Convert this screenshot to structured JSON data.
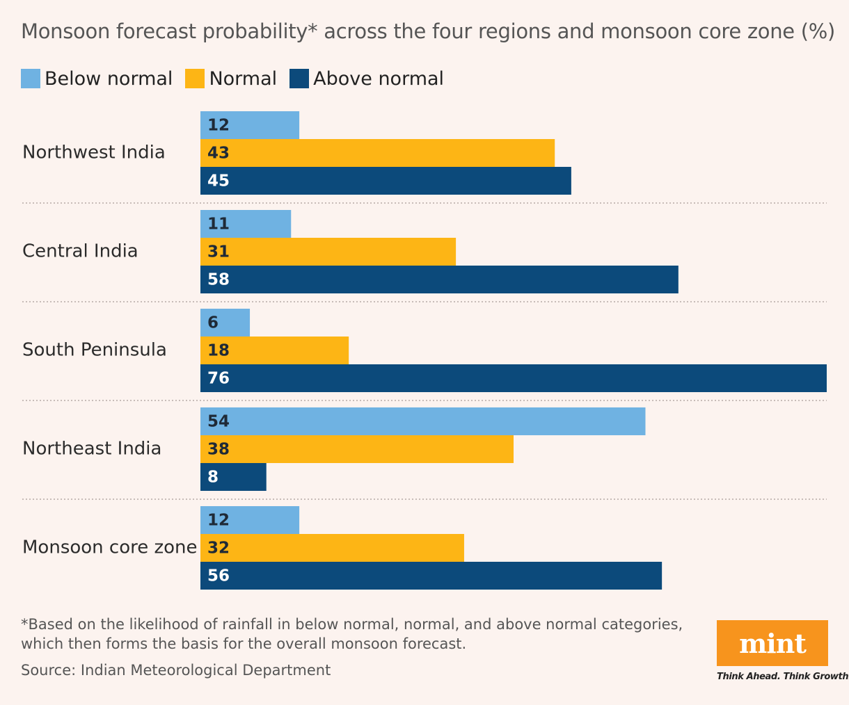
{
  "title": "Monsoon forecast probability* across the four regions and monsoon core zone (%)",
  "legend": [
    {
      "label": "Below normal",
      "color": "#6fb2e2"
    },
    {
      "label": "Normal",
      "color": "#fdb515"
    },
    {
      "label": "Above normal",
      "color": "#0c4a7b"
    }
  ],
  "chart_data": {
    "type": "bar",
    "orientation": "horizontal",
    "title": "Monsoon forecast probability* across the four regions and monsoon core zone (%)",
    "categories": [
      "Northwest India",
      "Central India",
      "South Peninsula",
      "Northeast India",
      "Monsoon core zone"
    ],
    "series": [
      {
        "name": "Below normal",
        "color": "#6fb2e2",
        "values": [
          12,
          11,
          6,
          54,
          12
        ]
      },
      {
        "name": "Normal",
        "color": "#fdb515",
        "values": [
          43,
          31,
          18,
          38,
          32
        ]
      },
      {
        "name": "Above normal",
        "color": "#0c4a7b",
        "values": [
          45,
          58,
          76,
          8,
          56
        ]
      }
    ],
    "xlim": [
      0,
      76
    ],
    "xlabel": "",
    "ylabel": "",
    "grid": false,
    "data_labels": true,
    "legend_position": "top-left"
  },
  "footnote": "*Based on the likelihood of rainfall in below normal, normal, and above normal categories, which then forms the basis for the overall monsoon forecast.",
  "source": "Source: Indian Meteorological Department",
  "logo": {
    "text": "mint",
    "tagline": "Think Ahead. Think Growth."
  }
}
